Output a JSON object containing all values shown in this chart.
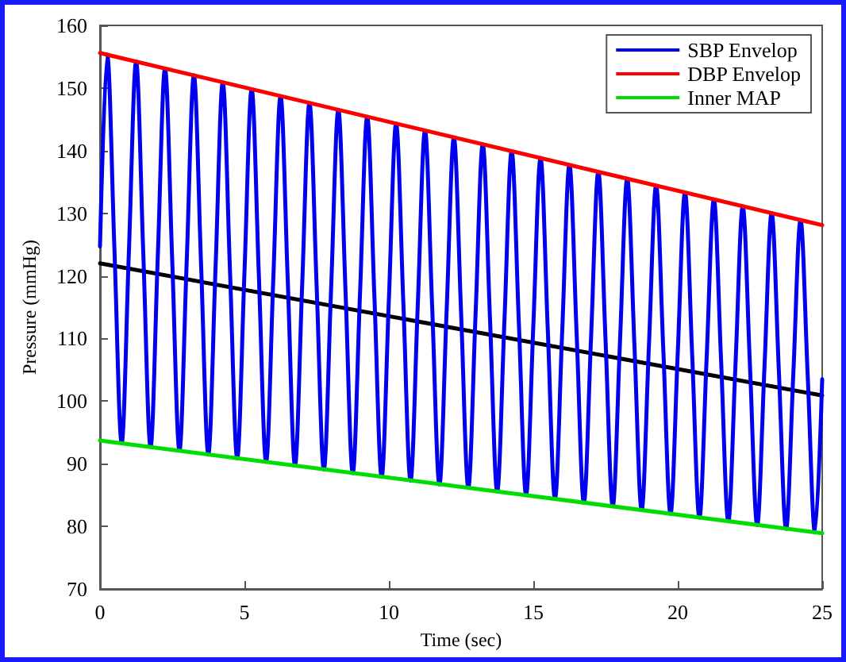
{
  "chart_data": {
    "type": "line",
    "xlabel": "Time (sec)",
    "ylabel": "Pressure (mmHg)",
    "xlim": [
      0,
      25
    ],
    "xticks": [
      0,
      5,
      10,
      15,
      20,
      25
    ],
    "ylim": [
      70,
      160
    ],
    "yticks": [
      70,
      80,
      90,
      100,
      110,
      120,
      130,
      140,
      150,
      160
    ],
    "grid": false,
    "legend": "top right",
    "marker": "none",
    "line_style": "solid",
    "series": [
      {
        "name": "SBP Envelop",
        "color": "#0000ee",
        "x": [
          0,
          0.25,
          0.5,
          0.75,
          1,
          1.25,
          1.5,
          1.75,
          2,
          2.25,
          2.5,
          2.75,
          3,
          3.25,
          3.5,
          3.75,
          4,
          4.25,
          4.5,
          4.75,
          5,
          5.25,
          5.5,
          5.75,
          6,
          6.25,
          6.5,
          6.75,
          7,
          7.25,
          7.5,
          7.75,
          8,
          8.25,
          8.5,
          8.75,
          9,
          9.25,
          9.5,
          9.75,
          10,
          10.25,
          10.5,
          10.75,
          11,
          11.25,
          11.5,
          11.75,
          12,
          12.25,
          12.5,
          12.75,
          13,
          13.25,
          13.5,
          13.75,
          14,
          14.25,
          14.5,
          14.75,
          15,
          15.25,
          15.5,
          15.75,
          16,
          16.25,
          16.5,
          16.75,
          17,
          17.25,
          17.5,
          17.75,
          18,
          18.25,
          18.5,
          18.75,
          19,
          19.25,
          19.5,
          19.75,
          20,
          20.25,
          20.5,
          20.75,
          21,
          21.25,
          21.5,
          21.75,
          22,
          22.25,
          22.5,
          22.75,
          23,
          23.25,
          23.5,
          23.75,
          24,
          24.25,
          24.5,
          24.75,
          25
        ],
        "values": [
          124.7,
          155.3,
          124.2,
          93.3,
          123.8,
          154.2,
          123.4,
          92.7,
          123.0,
          153.1,
          122.5,
          92.1,
          122.1,
          152.0,
          121.7,
          91.5,
          121.3,
          150.9,
          120.8,
          90.9,
          120.4,
          149.8,
          120.0,
          90.3,
          119.6,
          148.7,
          119.2,
          89.7,
          118.7,
          147.6,
          118.3,
          89.1,
          117.9,
          146.5,
          117.5,
          88.5,
          117.0,
          145.4,
          116.6,
          87.9,
          116.2,
          144.3,
          115.8,
          87.3,
          115.3,
          143.2,
          114.9,
          86.7,
          114.5,
          142.1,
          114.1,
          86.2,
          113.7,
          141.0,
          113.2,
          85.6,
          112.8,
          139.9,
          112.4,
          85.0,
          112.0,
          138.8,
          111.5,
          84.4,
          111.1,
          137.7,
          110.7,
          83.8,
          110.3,
          136.6,
          109.8,
          83.2,
          109.4,
          135.5,
          109.0,
          82.6,
          108.6,
          134.4,
          108.2,
          82.0,
          107.7,
          133.3,
          107.3,
          81.4,
          106.9,
          132.2,
          106.5,
          80.8,
          106.0,
          131.1,
          105.6,
          80.2,
          105.2,
          130.0,
          104.8,
          79.6,
          104.3,
          128.9,
          103.9,
          79.0,
          103.5
        ]
      },
      {
        "name": "DBP Envelop",
        "color": "#ff0000",
        "x": [
          0,
          25
        ],
        "values": [
          155.6,
          128.1
        ]
      },
      {
        "name": "Inner MAP",
        "color": "#00dd00",
        "x": [
          0,
          25
        ],
        "values": [
          93.7,
          78.9
        ]
      },
      {
        "color": "#000000",
        "x": [
          0,
          25
        ],
        "values": [
          122.0,
          100.9
        ]
      }
    ]
  }
}
